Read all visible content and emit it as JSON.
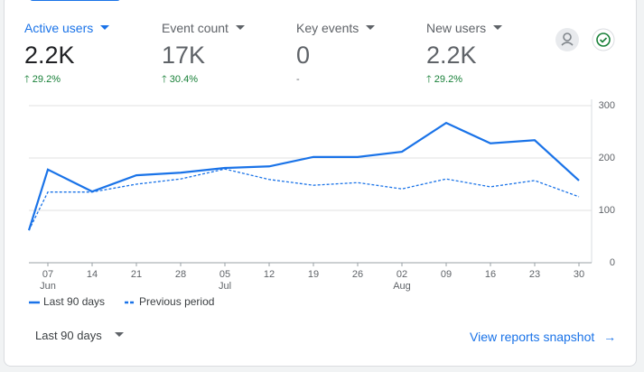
{
  "metrics": [
    {
      "label": "Active users",
      "value": "2.2K",
      "change": "29.2%"
    },
    {
      "label": "Event count",
      "value": "17K",
      "change": "30.4%"
    },
    {
      "label": "Key events",
      "value": "0",
      "change": "-"
    },
    {
      "label": "New users",
      "value": "2.2K",
      "change": "29.2%"
    }
  ],
  "chart_data": {
    "type": "line",
    "categories": [
      null,
      "07",
      "14",
      "21",
      "28",
      "05",
      "12",
      "19",
      "26",
      "02",
      "09",
      "16",
      "23",
      "30"
    ],
    "month_labels": [
      null,
      "Jun",
      null,
      null,
      null,
      "Jul",
      null,
      null,
      null,
      "Aug",
      null,
      null,
      null,
      null
    ],
    "series": [
      {
        "name": "Last 90 days",
        "color": "#1a73e8",
        "dash": false,
        "values": [
          62,
          178,
          136,
          167,
          172,
          181,
          184,
          202,
          202,
          212,
          267,
          228,
          234,
          157
        ]
      },
      {
        "name": "Previous period",
        "color": "#1a73e8",
        "dash": true,
        "values": [
          62,
          135,
          135,
          150,
          160,
          179,
          159,
          148,
          153,
          141,
          160,
          145,
          157,
          126
        ]
      }
    ],
    "ylim": [
      0,
      300
    ],
    "yticks": [
      0,
      100,
      200,
      300
    ],
    "grid": true,
    "legend": "bottom-left"
  },
  "footer": {
    "range": "Last 90 days",
    "link": "View reports snapshot"
  }
}
